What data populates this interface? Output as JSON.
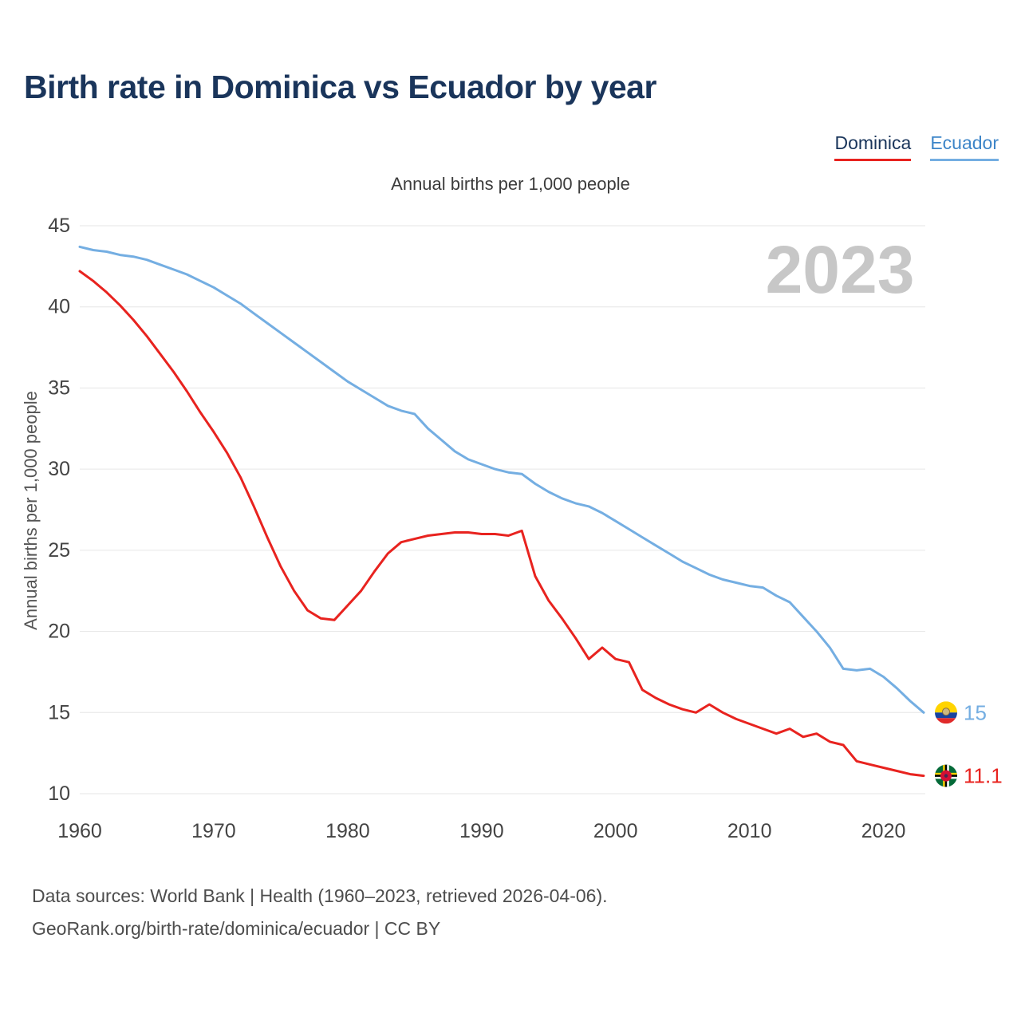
{
  "title": "Birth rate in Dominica vs Ecuador by year",
  "subtitle": "Annual births per 1,000 people",
  "watermark": "2023",
  "legend": {
    "dominica": "Dominica",
    "ecuador": "Ecuador"
  },
  "end_labels": {
    "dominica": "11.1",
    "ecuador": "15"
  },
  "footer": {
    "line1": "Data sources: World Bank | Health (1960–2023, retrieved 2026-04-06).",
    "line2": "GeoRank.org/birth-rate/dominica/ecuador | CC BY"
  },
  "colors": {
    "title": "#1a355b",
    "dominica": "#e8231f",
    "ecuador": "#74aee2",
    "legend_ecuador_text": "#3d85c8",
    "grid": "#e6e6e6",
    "axis_text": "#444444",
    "axis_title": "#555555",
    "watermark": "#c7c7c7"
  },
  "chart_data": {
    "type": "line",
    "title": "Birth rate in Dominica vs Ecuador by year",
    "ylabel": "Annual births per 1,000 people",
    "x_start": 1960,
    "x_end": 2023,
    "ylim": [
      10,
      45
    ],
    "yticks": [
      10,
      15,
      20,
      25,
      30,
      35,
      40,
      45
    ],
    "xticks": [
      1960,
      1970,
      1980,
      1990,
      2000,
      2010,
      2020
    ],
    "grid": "horizontal",
    "legend_position": "top-right",
    "series": [
      {
        "name": "Dominica",
        "color": "#e8231f",
        "end_value": 11.1,
        "values": [
          42.2,
          41.6,
          40.9,
          40.1,
          39.2,
          38.2,
          37.1,
          36.0,
          34.8,
          33.5,
          32.3,
          31.0,
          29.5,
          27.7,
          25.8,
          24.0,
          22.5,
          21.3,
          20.8,
          20.7,
          21.6,
          22.5,
          23.7,
          24.8,
          25.5,
          25.7,
          25.9,
          26.0,
          26.1,
          26.1,
          26.0,
          26.0,
          25.9,
          26.2,
          23.4,
          21.9,
          20.8,
          19.6,
          18.3,
          19.0,
          18.3,
          18.1,
          16.4,
          15.9,
          15.5,
          15.2,
          15.0,
          15.5,
          15.0,
          14.6,
          14.3,
          14.0,
          13.7,
          14.0,
          13.5,
          13.7,
          13.2,
          13.0,
          12.0,
          11.8,
          11.6,
          11.4,
          11.2,
          11.1
        ]
      },
      {
        "name": "Ecuador",
        "color": "#74aee2",
        "end_value": 15.0,
        "values": [
          43.7,
          43.5,
          43.4,
          43.2,
          43.1,
          42.9,
          42.6,
          42.3,
          42.0,
          41.6,
          41.2,
          40.7,
          40.2,
          39.6,
          39.0,
          38.4,
          37.8,
          37.2,
          36.6,
          36.0,
          35.4,
          34.9,
          34.4,
          33.9,
          33.6,
          33.4,
          32.5,
          31.8,
          31.1,
          30.6,
          30.3,
          30.0,
          29.8,
          29.7,
          29.1,
          28.6,
          28.2,
          27.9,
          27.7,
          27.3,
          26.8,
          26.3,
          25.8,
          25.3,
          24.8,
          24.3,
          23.9,
          23.5,
          23.2,
          23.0,
          22.8,
          22.7,
          22.2,
          21.8,
          20.9,
          20.0,
          19.0,
          17.7,
          17.6,
          17.7,
          17.2,
          16.5,
          15.7,
          15.0
        ]
      }
    ]
  }
}
